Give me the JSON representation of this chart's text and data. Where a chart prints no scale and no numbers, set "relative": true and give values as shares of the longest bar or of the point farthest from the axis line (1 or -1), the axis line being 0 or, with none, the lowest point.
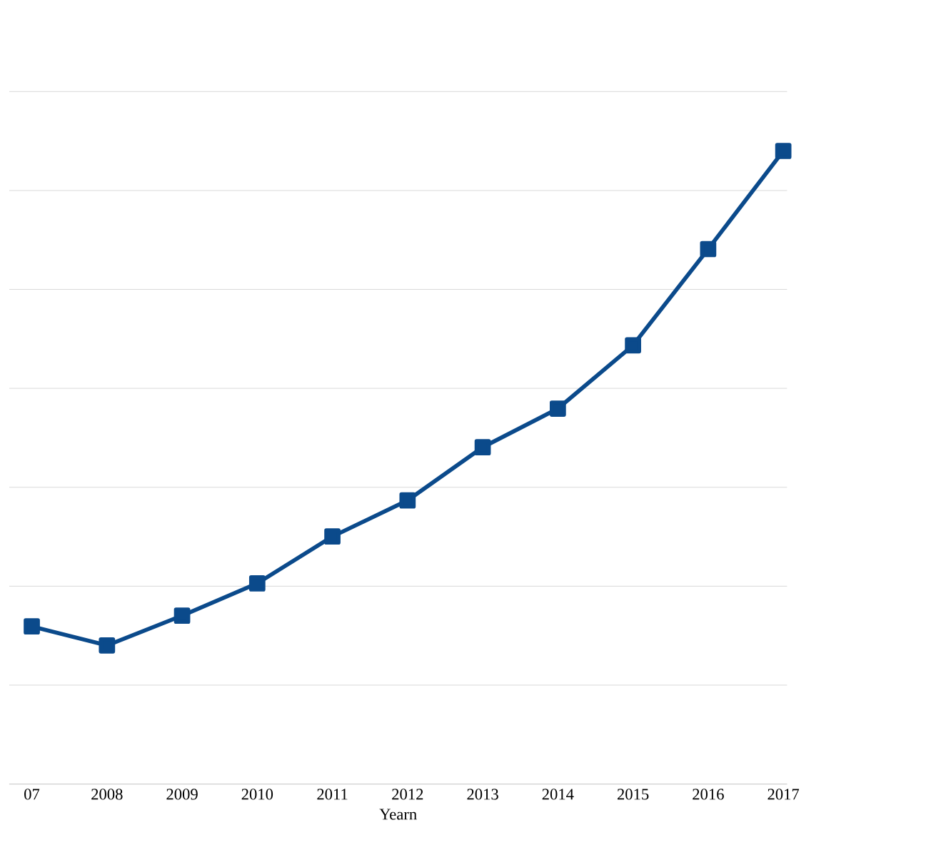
{
  "chart_data": {
    "type": "line",
    "xlabel": "Yearn",
    "relative": true,
    "grid": "y",
    "marker": "square",
    "line_style": "solid",
    "categories": [
      "07",
      "2008",
      "2009",
      "2010",
      "2011",
      "2012",
      "2013",
      "2014",
      "2015",
      "2016",
      "2017"
    ],
    "series": [
      {
        "color": "#0b4a8b",
        "values": [
          0.249,
          0.219,
          0.266,
          0.317,
          0.391,
          0.448,
          0.532,
          0.593,
          0.693,
          0.845,
          1.0
        ]
      }
    ]
  }
}
